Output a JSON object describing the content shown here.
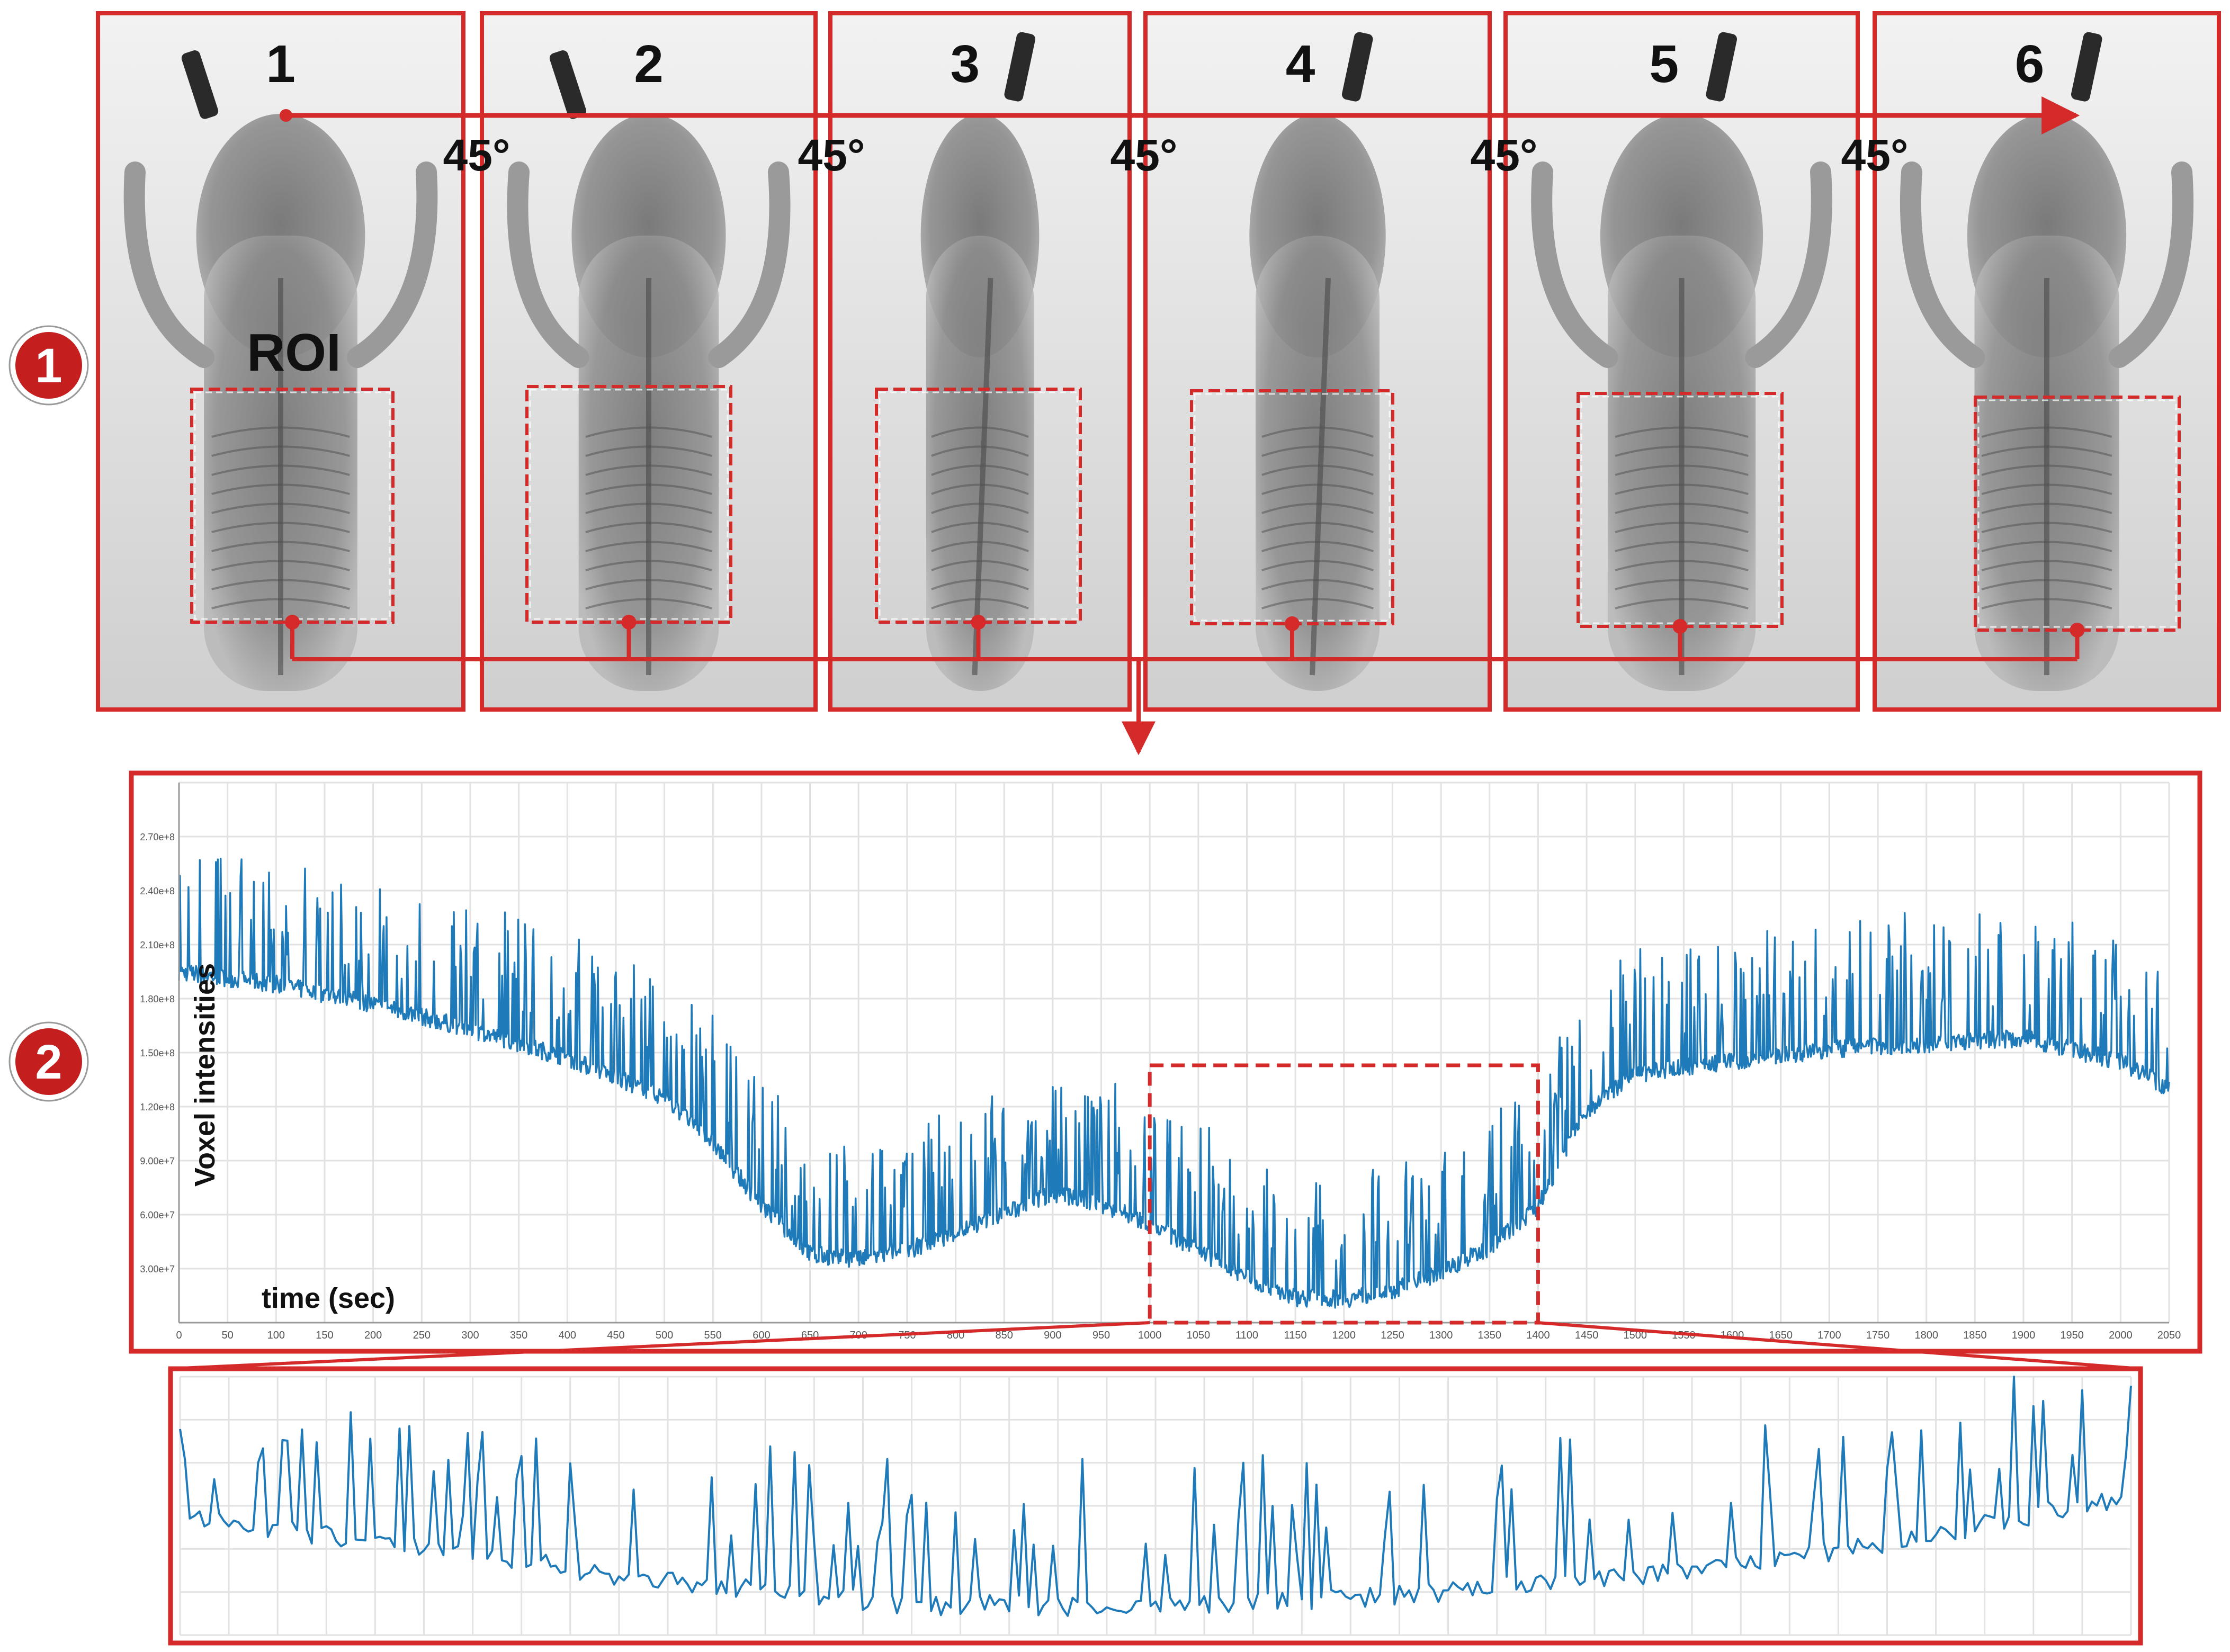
{
  "colors": {
    "frame_red": "#d42a2a",
    "signal_blue": "#1e7ab8",
    "grid": "#e2e2e2",
    "xray_light": "#e9e9e9",
    "xray_dark": "#3a3a3a"
  },
  "section_badges": [
    {
      "label": "1",
      "icon": "step-1-badge-icon"
    },
    {
      "label": "2",
      "icon": "step-2-badge-icon"
    }
  ],
  "projections": {
    "panels": [
      {
        "number": "1",
        "view": "frontal"
      },
      {
        "number": "2",
        "view": "oblique"
      },
      {
        "number": "3",
        "view": "lateral"
      },
      {
        "number": "4",
        "view": "lateral"
      },
      {
        "number": "5",
        "view": "frontal"
      },
      {
        "number": "6",
        "view": "frontal"
      }
    ],
    "angle_labels": [
      "45°",
      "45°",
      "45°",
      "45°",
      "45°"
    ],
    "roi_label": "ROI"
  },
  "chart_data": [
    {
      "type": "line",
      "title": "",
      "xlabel": "time (sec)",
      "ylabel": "Voxel intensities",
      "xlim": [
        0,
        2050
      ],
      "ylim": [
        0,
        300000000
      ],
      "x_ticks": [
        "0",
        "50",
        "100",
        "150",
        "200",
        "250",
        "300",
        "350",
        "400",
        "450",
        "500",
        "550",
        "600",
        "650",
        "700",
        "750",
        "800",
        "850",
        "900",
        "950",
        "1000",
        "1050",
        "1100",
        "1150",
        "1200",
        "1250",
        "1300",
        "1350",
        "1400",
        "1450",
        "1500",
        "1550",
        "1600",
        "1650",
        "1700",
        "1750",
        "1800",
        "1850",
        "1900",
        "1950",
        "2000",
        "2050"
      ],
      "y_ticks": [
        "3.00e+7",
        "6.00e+7",
        "9.00e+7",
        "1.20e+8",
        "1.50e+8",
        "1.80e+8",
        "2.10e+8",
        "2.40e+8",
        "2.70e+8"
      ],
      "grid": true,
      "baseline_trend": {
        "x": [
          0,
          100,
          200,
          300,
          400,
          500,
          550,
          600,
          650,
          700,
          750,
          800,
          850,
          900,
          950,
          1000,
          1050,
          1100,
          1150,
          1200,
          1250,
          1300,
          1350,
          1400,
          1450,
          1500,
          1600,
          1700,
          1800,
          1900,
          2000,
          2050
        ],
        "y": [
          195000000,
          188000000,
          177000000,
          163000000,
          147000000,
          125000000,
          100000000,
          65000000,
          38000000,
          35000000,
          40000000,
          50000000,
          60000000,
          72000000,
          66000000,
          55000000,
          40000000,
          25000000,
          14000000,
          13000000,
          18000000,
          28000000,
          42000000,
          65000000,
          118000000,
          138000000,
          145000000,
          152000000,
          155000000,
          158000000,
          145000000,
          130000000
        ]
      },
      "spike_height": 55000000,
      "zoom_window": [
        1000,
        1400
      ]
    },
    {
      "type": "line",
      "title": "",
      "xlabel": "",
      "ylabel": "",
      "xlim": [
        1000,
        1400
      ],
      "grid": true,
      "baseline_trend": {
        "x": [
          1000,
          1050,
          1100,
          1150,
          1200,
          1250,
          1300,
          1350,
          1400
        ],
        "y": [
          55000000,
          40000000,
          25000000,
          14000000,
          13000000,
          18000000,
          28000000,
          42000000,
          65000000
        ]
      }
    }
  ]
}
